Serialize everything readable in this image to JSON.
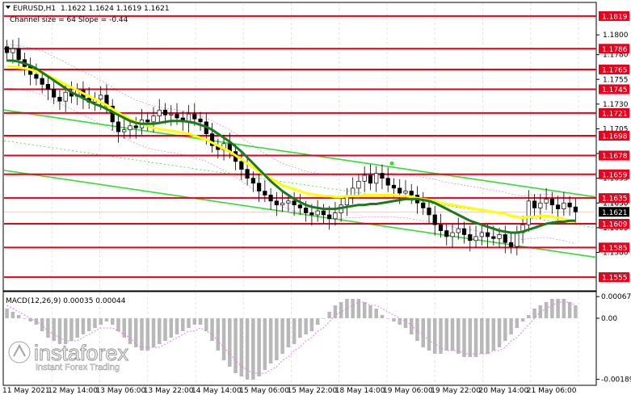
{
  "chart_data": [
    {
      "type": "candlestick",
      "symbol_header": "EURUSD,H1",
      "ohlc_header": "1.1622 1.1624 1.1619 1.1621",
      "channel_note": "Channel size = 64 Slope = -0.44",
      "ylim": [
        1.1542,
        1.1832
      ],
      "y_ticks": [
        1.18,
        1.178,
        1.1755,
        1.173,
        1.1705,
        1.168,
        1.1655,
        1.163,
        1.1605,
        1.158
      ],
      "level_lines": [
        {
          "value": 1.1819,
          "label": "1.1819"
        },
        {
          "value": 1.1786,
          "label": "1.1786"
        },
        {
          "value": 1.1765,
          "label": "1.1765"
        },
        {
          "value": 1.1745,
          "label": "1.1745"
        },
        {
          "value": 1.1721,
          "label": "1.1721"
        },
        {
          "value": 1.1698,
          "label": "1.1698"
        },
        {
          "value": 1.1678,
          "label": "1.1678"
        },
        {
          "value": 1.1659,
          "label": "1.1659"
        },
        {
          "value": 1.1635,
          "label": "1.1635"
        },
        {
          "value": 1.1609,
          "label": "1.1609"
        },
        {
          "value": 1.1585,
          "label": "1.1585"
        },
        {
          "value": 1.1555,
          "label": "1.1555"
        }
      ],
      "current_price": {
        "value": 1.1621,
        "label": "1.1621"
      },
      "hidden_tick_label": "1.1630",
      "x_labels": [
        "11 May 2021",
        "12 May 14:00",
        "13 May 06:00",
        "13 May 22:00",
        "14 May 14:00",
        "15 May 06:00",
        "15 May 22:00",
        "18 May 14:00",
        "19 May 06:00",
        "19 May 22:00",
        "20 May 14:00",
        "21 May 06:00"
      ],
      "closes": [
        1.1782,
        1.1786,
        1.1775,
        1.1768,
        1.176,
        1.1756,
        1.175,
        1.1745,
        1.1737,
        1.1733,
        1.1742,
        1.1738,
        1.1744,
        1.1736,
        1.1732,
        1.1735,
        1.1739,
        1.1728,
        1.1712,
        1.1702,
        1.1704,
        1.1708,
        1.1706,
        1.1714,
        1.1712,
        1.1718,
        1.1724,
        1.1719,
        1.172,
        1.1716,
        1.1712,
        1.172,
        1.1715,
        1.1712,
        1.17,
        1.1688,
        1.1684,
        1.169,
        1.1682,
        1.1672,
        1.1664,
        1.1655,
        1.165,
        1.1642,
        1.1638,
        1.1632,
        1.1628,
        1.163,
        1.1632,
        1.1628,
        1.1625,
        1.162,
        1.1618,
        1.1622,
        1.1618,
        1.1614,
        1.162,
        1.1628,
        1.1636,
        1.1645,
        1.1652,
        1.1658,
        1.165,
        1.166,
        1.1655,
        1.1648,
        1.1645,
        1.164,
        1.1642,
        1.1638,
        1.163,
        1.1625,
        1.1618,
        1.1608,
        1.1602,
        1.1596,
        1.16,
        1.1604,
        1.1598,
        1.1592,
        1.1596,
        1.16,
        1.1596,
        1.1594,
        1.1598,
        1.159,
        1.1586,
        1.16,
        1.1608,
        1.1632,
        1.1625,
        1.163,
        1.1634,
        1.1628,
        1.1624,
        1.163,
        1.1626,
        1.1621
      ],
      "ma_yellow": [
        1.1768,
        1.1768,
        1.1767,
        1.1766,
        1.1765,
        1.1763,
        1.1762,
        1.1759,
        1.1756,
        1.1753,
        1.175,
        1.1747,
        1.1744,
        1.1741,
        1.1738,
        1.1735,
        1.1732,
        1.1729,
        1.1725,
        1.1721,
        1.1718,
        1.1715,
        1.1712,
        1.171,
        1.1708,
        1.1706,
        1.1705,
        1.1704,
        1.1703,
        1.1702,
        1.1701,
        1.17,
        1.1698,
        1.1696,
        1.1694,
        1.1691,
        1.1688,
        1.1685,
        1.1682,
        1.1678,
        1.1674,
        1.167,
        1.1666,
        1.1662,
        1.1658,
        1.1655,
        1.1651,
        1.1648,
        1.1646,
        1.1644,
        1.1642,
        1.164,
        1.1639,
        1.1638,
        1.1637,
        1.1637,
        1.1636,
        1.1636,
        1.1637,
        1.1637,
        1.1637,
        1.1638,
        1.1638,
        1.1638,
        1.1638,
        1.1638,
        1.1638,
        1.1637,
        1.1637,
        1.1636,
        1.1635,
        1.1634,
        1.1633,
        1.1632,
        1.163,
        1.1629,
        1.1628,
        1.1627,
        1.1626,
        1.1625,
        1.1624,
        1.1623,
        1.1622,
        1.1621,
        1.162,
        1.1619,
        1.1617,
        1.1616,
        1.1615,
        1.1616,
        1.1616,
        1.1617,
        1.1617,
        1.1616,
        1.1615,
        1.1614,
        1.1612,
        1.1611
      ],
      "ma_green": [
        1.1774,
        1.1774,
        1.1773,
        1.1771,
        1.1769,
        1.1766,
        1.1762,
        1.1758,
        1.1754,
        1.175,
        1.1746,
        1.1742,
        1.1739,
        1.1736,
        1.1733,
        1.173,
        1.1728,
        1.1725,
        1.1722,
        1.1719,
        1.1716,
        1.1713,
        1.1711,
        1.171,
        1.171,
        1.171,
        1.1711,
        1.1712,
        1.1713,
        1.1713,
        1.1713,
        1.1712,
        1.1711,
        1.1709,
        1.1707,
        1.1704,
        1.17,
        1.1696,
        1.1692,
        1.1687,
        1.1682,
        1.1676,
        1.167,
        1.1664,
        1.1658,
        1.1652,
        1.1647,
        1.1642,
        1.1638,
        1.1634,
        1.1631,
        1.1628,
        1.1626,
        1.1625,
        1.1624,
        1.1624,
        1.1624,
        1.1625,
        1.1626,
        1.1627,
        1.1628,
        1.1628,
        1.1629,
        1.1629,
        1.163,
        1.1631,
        1.1632,
        1.1633,
        1.1634,
        1.1634,
        1.1634,
        1.1633,
        1.1632,
        1.163,
        1.1627,
        1.1624,
        1.1621,
        1.1618,
        1.1615,
        1.1612,
        1.161,
        1.1608,
        1.1606,
        1.1604,
        1.1602,
        1.1601,
        1.16,
        1.16,
        1.1601,
        1.1603,
        1.1605,
        1.1607,
        1.1609,
        1.161,
        1.1611,
        1.1611,
        1.1612,
        1.1612
      ]
    },
    {
      "type": "histogram",
      "label": "MACD(12,26,9) 0.00035 0.00044",
      "ylim": [
        -0.00205,
        0.0008
      ],
      "y_ticks": [
        {
          "value": 0.00067,
          "label": "0.00067"
        },
        {
          "value": 0.0,
          "label": "0.00"
        },
        {
          "value": -0.00189,
          "label": "-0.00189"
        }
      ],
      "histogram": [
        0.0003,
        0.0002,
        0.0001,
        0.0,
        -0.0001,
        -0.0002,
        -0.0004,
        -0.0006,
        -0.0007,
        -0.0008,
        -0.0008,
        -0.0007,
        -0.0006,
        -0.0005,
        -0.0004,
        -0.0003,
        -0.0002,
        -0.0001,
        -0.0002,
        -0.0004,
        -0.0006,
        -0.0008,
        -0.0009,
        -0.001,
        -0.001,
        -0.0009,
        -0.0008,
        -0.0007,
        -0.0006,
        -0.0005,
        -0.0004,
        -0.0003,
        -0.0002,
        -0.0002,
        -0.0004,
        -0.0007,
        -0.001,
        -0.0013,
        -0.0015,
        -0.0017,
        -0.0018,
        -0.0019,
        -0.0019,
        -0.0018,
        -0.0016,
        -0.0014,
        -0.0013,
        -0.0011,
        -0.0009,
        -0.0008,
        -0.0006,
        -0.0005,
        -0.0004,
        -0.0002,
        0.0,
        0.0002,
        0.0004,
        0.0005,
        0.0006,
        0.0006,
        0.0006,
        0.0005,
        0.0004,
        0.0003,
        0.0001,
        0.0,
        -0.0001,
        -0.0002,
        -0.0003,
        -0.0005,
        -0.0007,
        -0.0009,
        -0.001,
        -0.0011,
        -0.0011,
        -0.001,
        -0.001,
        -0.0011,
        -0.0012,
        -0.0012,
        -0.0012,
        -0.0011,
        -0.0011,
        -0.001,
        -0.0009,
        -0.0007,
        -0.0005,
        -0.0003,
        -0.0001,
        0.0001,
        0.0003,
        0.0004,
        0.0005,
        0.0006,
        0.0006,
        0.0006,
        0.0005,
        0.0004
      ],
      "signal": [
        0.0004,
        0.0003,
        0.0002,
        0.0001,
        0.0,
        -0.0001,
        -0.0002,
        -0.0004,
        -0.0005,
        -0.0006,
        -0.0007,
        -0.0007,
        -0.0007,
        -0.0006,
        -0.0005,
        -0.0004,
        -0.0003,
        -0.0003,
        -0.0003,
        -0.0004,
        -0.0005,
        -0.0006,
        -0.0008,
        -0.0009,
        -0.0009,
        -0.0009,
        -0.0009,
        -0.0008,
        -0.0007,
        -0.0006,
        -0.0005,
        -0.0004,
        -0.0004,
        -0.0003,
        -0.0004,
        -0.0005,
        -0.0007,
        -0.0009,
        -0.0011,
        -0.0013,
        -0.0015,
        -0.0016,
        -0.0017,
        -0.0017,
        -0.0017,
        -0.0016,
        -0.0015,
        -0.0013,
        -0.0012,
        -0.001,
        -0.0009,
        -0.0007,
        -0.0006,
        -0.0004,
        -0.0003,
        -0.0001,
        0.0001,
        0.0002,
        0.0003,
        0.0004,
        0.0005,
        0.0005,
        0.0004,
        0.0004,
        0.0003,
        0.0002,
        0.0001,
        0.0,
        -0.0001,
        -0.0002,
        -0.0004,
        -0.0005,
        -0.0007,
        -0.0008,
        -0.0009,
        -0.001,
        -0.001,
        -0.001,
        -0.0011,
        -0.0011,
        -0.0011,
        -0.0011,
        -0.0011,
        -0.001,
        -0.001,
        -0.0009,
        -0.0007,
        -0.0006,
        -0.0004,
        -0.0002,
        0.0,
        0.0002,
        0.0003,
        0.0004,
        0.0005,
        0.0005,
        0.0005,
        0.0004
      ]
    }
  ],
  "colors": {
    "level_line": "#e8001c",
    "current_price_box": "#000000",
    "ma_yellow": "#ffff00",
    "ma_green": "#1a7a1a",
    "channel": "#33dd33",
    "histogram": "#b8b8b8",
    "signal": "#e080e0",
    "bands": "#d098d8"
  },
  "watermark": {
    "brand": "instaforex",
    "tagline": "Instant Forex Trading"
  }
}
